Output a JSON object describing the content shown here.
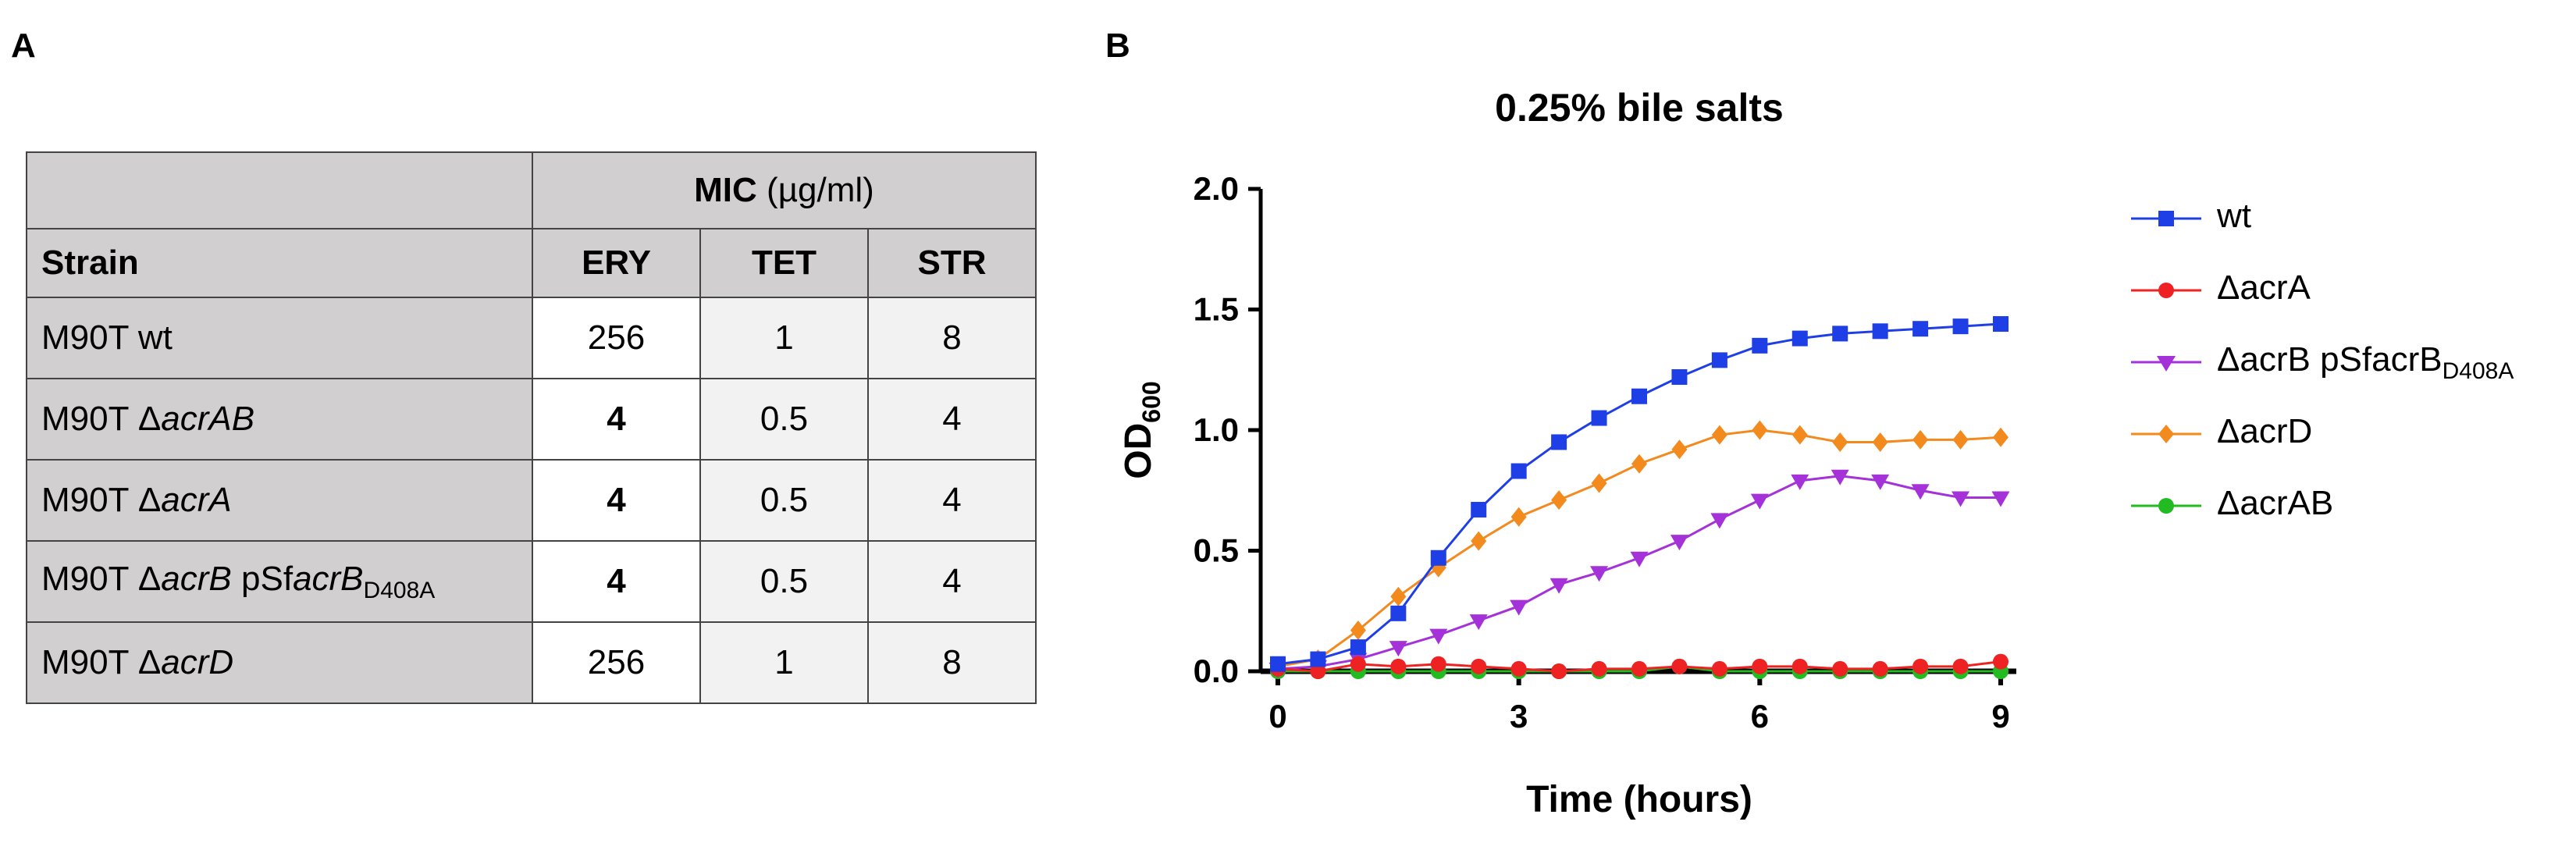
{
  "panel_a": {
    "letter": "A",
    "table": {
      "mic_label_bold": "MIC",
      "mic_label_unit": " (µg/ml)",
      "columns": [
        "Strain",
        "ERY",
        "TET",
        "STR"
      ],
      "rows": [
        {
          "prefix": "M90T wt",
          "italic": "",
          "mid": "",
          "italic2": "",
          "sub": "",
          "ery": "256",
          "ery_bold": false,
          "tet": "1",
          "str": "8"
        },
        {
          "prefix": "M90T Δ",
          "italic": "acrAB",
          "mid": "",
          "italic2": "",
          "sub": "",
          "ery": "4",
          "ery_bold": true,
          "tet": "0.5",
          "str": "4"
        },
        {
          "prefix": "M90T Δ",
          "italic": "acrA",
          "mid": "",
          "italic2": "",
          "sub": "",
          "ery": "4",
          "ery_bold": true,
          "tet": "0.5",
          "str": "4"
        },
        {
          "prefix": "M90T Δ",
          "italic": "acrB",
          "mid": " pSf",
          "italic2": "acrB",
          "sub": "D408A",
          "ery": "4",
          "ery_bold": true,
          "tet": "0.5",
          "str": "4"
        },
        {
          "prefix": "M90T Δ",
          "italic": "acrD",
          "mid": "",
          "italic2": "",
          "sub": "",
          "ery": "256",
          "ery_bold": false,
          "tet": "1",
          "str": "8"
        }
      ]
    }
  },
  "panel_b": {
    "letter": "B"
  },
  "chart_data": {
    "type": "line",
    "title": "0.25% bile salts",
    "xlabel": "Time (hours)",
    "ylabel": "OD",
    "ylabel_sub": "600",
    "xlim": [
      0,
      9
    ],
    "ylim": [
      0,
      2.0
    ],
    "xticks": [
      0,
      3,
      6,
      9
    ],
    "yticks": [
      0.0,
      0.5,
      1.0,
      1.5,
      2.0
    ],
    "ytick_labels": [
      "0.0",
      "0.5",
      "1.0",
      "1.5",
      "2.0"
    ],
    "grid": false,
    "legend_position": "right",
    "x": [
      0,
      0.5,
      1,
      1.5,
      2,
      2.5,
      3,
      3.5,
      4,
      4.5,
      5,
      5.5,
      6,
      6.5,
      7,
      7.5,
      8,
      8.5,
      9
    ],
    "series": [
      {
        "name": "wt",
        "color": "#1f3fe6",
        "marker": "square",
        "values": [
          0.03,
          0.05,
          0.1,
          0.24,
          0.47,
          0.67,
          0.83,
          0.95,
          1.05,
          1.14,
          1.22,
          1.29,
          1.35,
          1.38,
          1.4,
          1.41,
          1.42,
          1.43,
          1.44
        ]
      },
      {
        "name": "ΔacrA",
        "color": "#ee2222",
        "marker": "circle",
        "values": [
          0.01,
          0.0,
          0.03,
          0.02,
          0.03,
          0.02,
          0.01,
          0.0,
          0.01,
          0.01,
          0.02,
          0.01,
          0.02,
          0.02,
          0.01,
          0.01,
          0.02,
          0.02,
          0.04
        ]
      },
      {
        "name": "ΔacrB pSfacrB",
        "name_sub": "D408A",
        "color": "#a432d8",
        "marker": "triangle-down",
        "values": [
          0.01,
          0.02,
          0.05,
          0.1,
          0.15,
          0.21,
          0.27,
          0.36,
          0.41,
          0.47,
          0.54,
          0.63,
          0.71,
          0.79,
          0.81,
          0.79,
          0.75,
          0.72,
          0.72
        ]
      },
      {
        "name": "ΔacrD",
        "color": "#f28a1e",
        "marker": "diamond",
        "values": [
          0.02,
          0.05,
          0.17,
          0.31,
          0.43,
          0.54,
          0.64,
          0.71,
          0.78,
          0.86,
          0.92,
          0.98,
          1.0,
          0.98,
          0.95,
          0.95,
          0.96,
          0.96,
          0.97
        ]
      },
      {
        "name": "ΔacrAB",
        "color": "#22bb22",
        "marker": "circle",
        "values": [
          0.0,
          0.0,
          0.0,
          0.0,
          0.0,
          0.0,
          0.0,
          0.0,
          0.0,
          0.0,
          0.02,
          0.0,
          0.0,
          0.0,
          0.0,
          0.0,
          0.0,
          0.0,
          0.0
        ]
      }
    ]
  }
}
